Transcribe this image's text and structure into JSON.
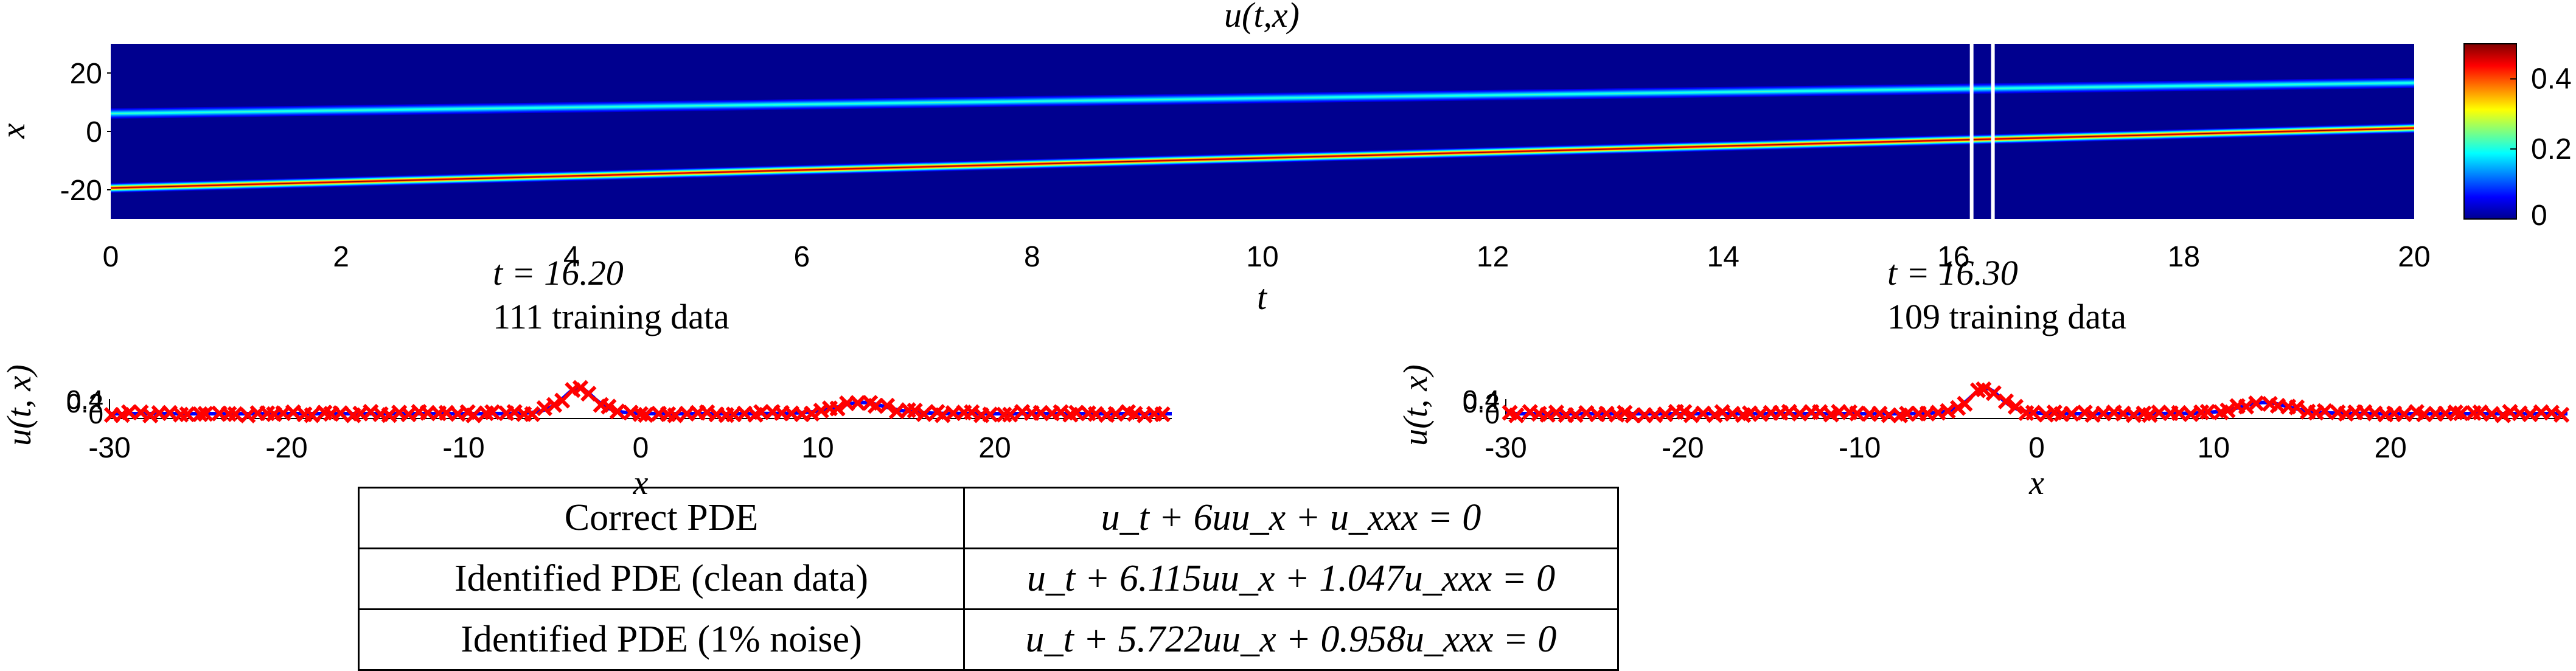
{
  "chart_data": [
    {
      "type": "heatmap",
      "title": "u(t,x)",
      "xlabel": "t",
      "ylabel": "x",
      "xlim": [
        0,
        20
      ],
      "ylim": [
        -30,
        30
      ],
      "xticks": [
        "0",
        "2",
        "4",
        "6",
        "8",
        "10",
        "12",
        "14",
        "16",
        "18",
        "20"
      ],
      "yticks": [
        "-20",
        "0",
        "20"
      ],
      "colormap": "jet",
      "colorbar": {
        "range": [
          0,
          0.5
        ],
        "ticks": [
          "0",
          "0.2",
          "0.4"
        ]
      },
      "solitons": [
        {
          "x_at_t0": 6,
          "x_at_t20": 16.5,
          "peak": 0.22
        },
        {
          "x_at_t0": -19.5,
          "x_at_t20": 1,
          "peak": 0.5
        }
      ],
      "markers": [
        {
          "t": 16.2,
          "color": "#ffffff"
        },
        {
          "t": 16.3,
          "color": "#ffffff"
        }
      ]
    },
    {
      "type": "line",
      "title_line1": "t = 16.20",
      "title_line2": "111 training data",
      "xlabel": "x",
      "ylabel": "u(t, x)",
      "xlim": [
        -30,
        30
      ],
      "ylim": [
        -0.05,
        0.55
      ],
      "xticks": [
        "-30",
        "-20",
        "-10",
        "0",
        "10",
        "20"
      ],
      "yticks": [
        "0",
        "0.2",
        "0.4"
      ],
      "line_color": "#0000ff",
      "marker_color": "#ff0000",
      "peaks": [
        {
          "x": -3.5,
          "amp": 0.5,
          "width": 1.2
        },
        {
          "x": 12.5,
          "amp": 0.22,
          "width": 1.8
        }
      ],
      "n_points": 111
    },
    {
      "type": "line",
      "title_line1": "t = 16.30",
      "title_line2": "109 training data",
      "xlabel": "x",
      "ylabel": "u(t, x)",
      "xlim": [
        -30,
        30
      ],
      "ylim": [
        -0.05,
        0.55
      ],
      "xticks": [
        "-30",
        "-20",
        "-10",
        "0",
        "10",
        "20"
      ],
      "yticks": [
        "0",
        "0.2",
        "0.4"
      ],
      "line_color": "#0000ff",
      "marker_color": "#ff0000",
      "peaks": [
        {
          "x": -2.9,
          "amp": 0.5,
          "width": 1.2
        },
        {
          "x": 12.9,
          "amp": 0.22,
          "width": 1.8
        }
      ],
      "n_points": 109
    },
    {
      "type": "table",
      "rows": [
        {
          "label": "Correct PDE",
          "equation": "u_t + 6uu_x + u_xxx = 0"
        },
        {
          "label": "Identified PDE (clean data)",
          "equation": "u_t + 6.115uu_x + 1.047u_xxx = 0"
        },
        {
          "label": "Identified PDE (1% noise)",
          "equation": "u_t + 5.722uu_x + 0.958u_xxx = 0"
        }
      ]
    }
  ]
}
